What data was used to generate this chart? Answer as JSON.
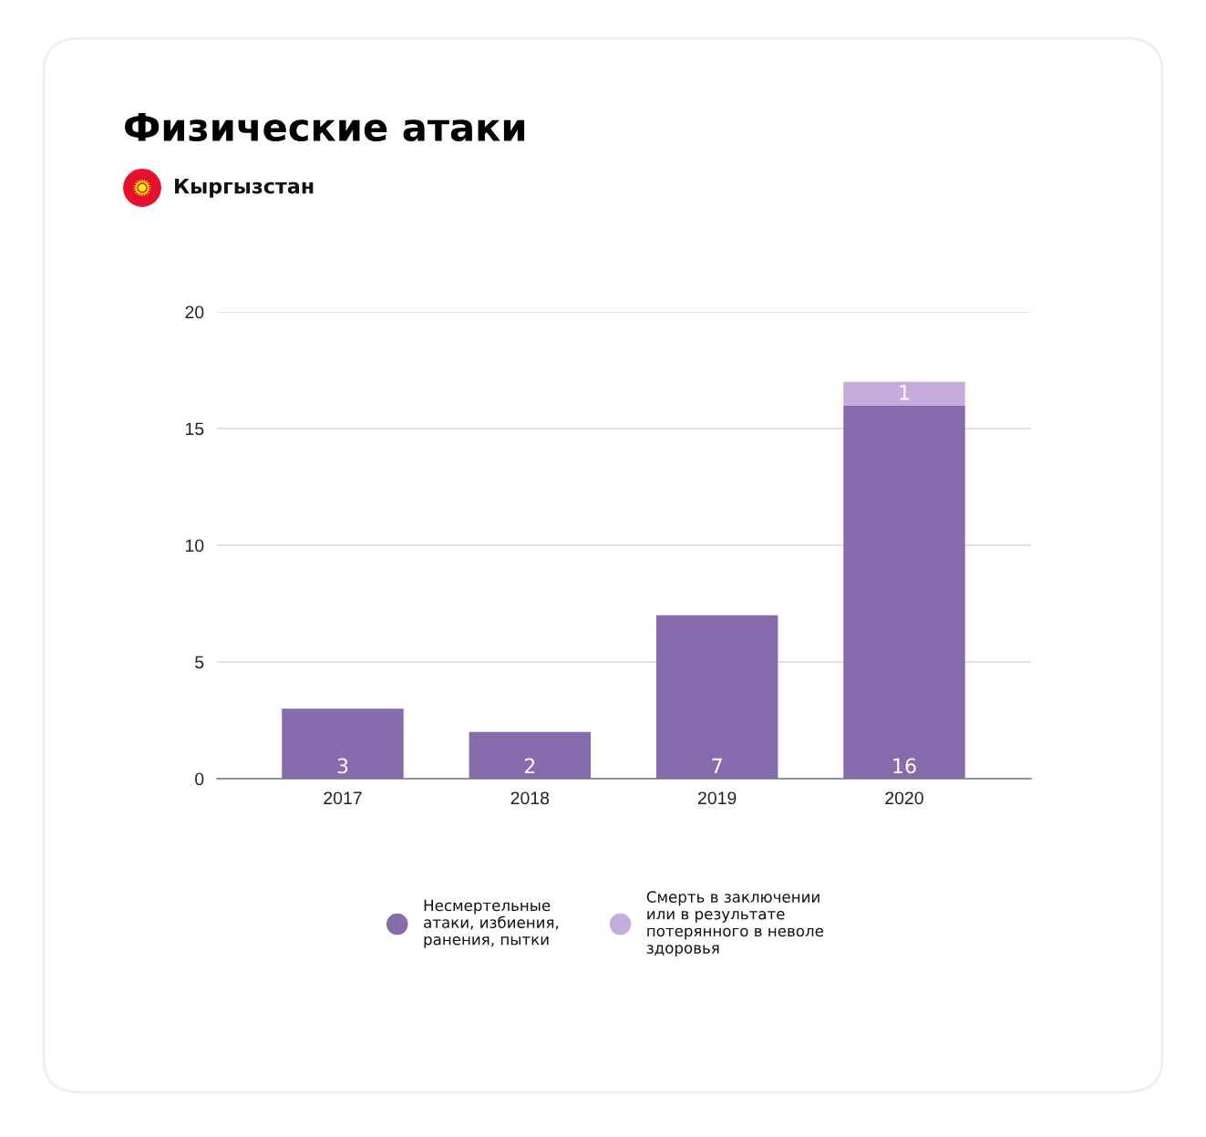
{
  "chart_data": {
    "type": "bar",
    "title": "Физические атаки",
    "subtitle": "Кыргызстан",
    "categories": [
      "2017",
      "2018",
      "2019",
      "2020"
    ],
    "stacked": true,
    "series": [
      {
        "name": "Несмертельные атаки, избиения, ранения, пытки",
        "color": "#886bad",
        "values": [
          3,
          2,
          7,
          16
        ]
      },
      {
        "name": "Смерть в заключении или в результате потерянного в неволе здоровья",
        "color": "#c5acdd",
        "values": [
          null,
          null,
          null,
          1
        ]
      }
    ],
    "ylim": [
      0,
      20
    ],
    "yticks": [
      0,
      5,
      10,
      15,
      20
    ],
    "grid": "y",
    "legend": "bottom",
    "data_labels": true
  }
}
